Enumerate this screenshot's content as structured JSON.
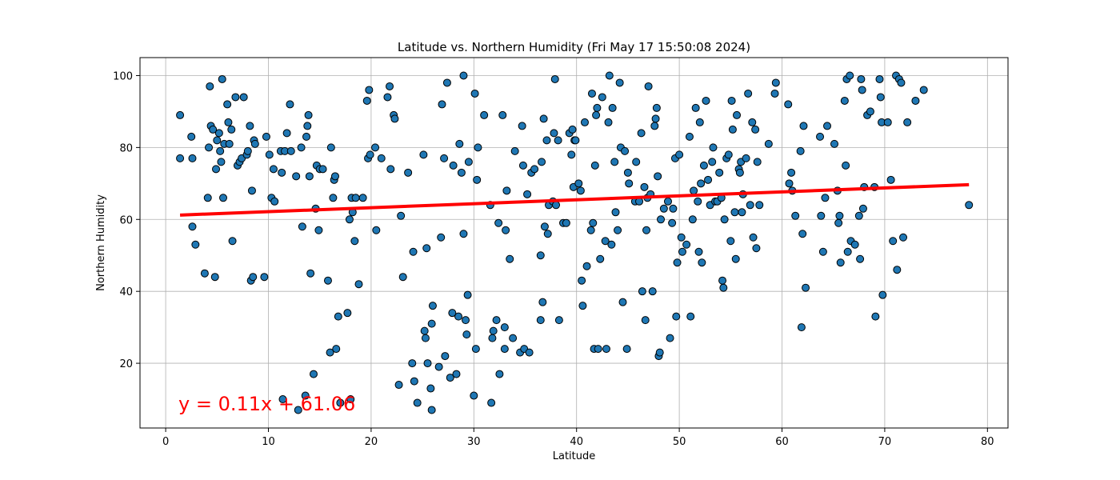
{
  "chart_data": {
    "type": "scatter",
    "title": "Latitude vs. Northern Humidity (Fri May 17 15:50:08 2024)",
    "xlabel": "Latitude",
    "ylabel": "Northern Humidity",
    "xlim": [
      -2.5,
      82
    ],
    "ylim": [
      2,
      105
    ],
    "xticks": [
      0,
      10,
      20,
      30,
      40,
      50,
      60,
      70,
      80
    ],
    "yticks": [
      20,
      40,
      60,
      80,
      100
    ],
    "grid": true,
    "marker_color": "#1f77b4",
    "marker_edge_color": "#000000",
    "regression": {
      "equation": "y = 0.11x + 61.06",
      "slope": 0.11,
      "intercept": 61.06,
      "x_range": [
        1.4,
        78.2
      ],
      "color": "#ff0000"
    },
    "points": [
      [
        1.4,
        89
      ],
      [
        1.4,
        77
      ],
      [
        2.5,
        83
      ],
      [
        2.6,
        77
      ],
      [
        2.6,
        58
      ],
      [
        2.9,
        53
      ],
      [
        3.8,
        45
      ],
      [
        4.1,
        66
      ],
      [
        4.2,
        80
      ],
      [
        4.3,
        97
      ],
      [
        4.4,
        86
      ],
      [
        4.6,
        85
      ],
      [
        4.8,
        44
      ],
      [
        4.9,
        74
      ],
      [
        5.0,
        82
      ],
      [
        5.2,
        84
      ],
      [
        5.3,
        79
      ],
      [
        5.4,
        76
      ],
      [
        5.5,
        99
      ],
      [
        5.6,
        66
      ],
      [
        5.7,
        81
      ],
      [
        6.0,
        92
      ],
      [
        6.1,
        87
      ],
      [
        6.2,
        81
      ],
      [
        6.4,
        85
      ],
      [
        6.5,
        54
      ],
      [
        6.8,
        94
      ],
      [
        7.0,
        75
      ],
      [
        7.2,
        76
      ],
      [
        7.4,
        77
      ],
      [
        7.6,
        94
      ],
      [
        7.9,
        78
      ],
      [
        8.0,
        79
      ],
      [
        8.2,
        86
      ],
      [
        8.3,
        43
      ],
      [
        8.4,
        68
      ],
      [
        8.5,
        44
      ],
      [
        8.6,
        82
      ],
      [
        8.7,
        81
      ],
      [
        9.6,
        44
      ],
      [
        9.8,
        83
      ],
      [
        10.1,
        78
      ],
      [
        10.3,
        66
      ],
      [
        10.5,
        74
      ],
      [
        10.6,
        65
      ],
      [
        11.2,
        79
      ],
      [
        11.3,
        73
      ],
      [
        11.4,
        10
      ],
      [
        11.6,
        79
      ],
      [
        11.8,
        84
      ],
      [
        12.1,
        92
      ],
      [
        12.2,
        79
      ],
      [
        12.7,
        72
      ],
      [
        12.9,
        7
      ],
      [
        13.2,
        80
      ],
      [
        13.3,
        58
      ],
      [
        13.6,
        11
      ],
      [
        13.7,
        83
      ],
      [
        13.8,
        86
      ],
      [
        13.9,
        89
      ],
      [
        14.0,
        72
      ],
      [
        14.1,
        45
      ],
      [
        14.4,
        17
      ],
      [
        14.6,
        63
      ],
      [
        14.7,
        75
      ],
      [
        14.9,
        57
      ],
      [
        15.0,
        74
      ],
      [
        15.3,
        74
      ],
      [
        15.8,
        43
      ],
      [
        16.0,
        23
      ],
      [
        16.1,
        80
      ],
      [
        16.3,
        66
      ],
      [
        16.4,
        71
      ],
      [
        16.5,
        72
      ],
      [
        16.6,
        24
      ],
      [
        16.8,
        33
      ],
      [
        17.0,
        9
      ],
      [
        17.7,
        34
      ],
      [
        17.9,
        60
      ],
      [
        18.0,
        10
      ],
      [
        18.1,
        66
      ],
      [
        18.2,
        62
      ],
      [
        18.4,
        54
      ],
      [
        18.5,
        66
      ],
      [
        18.8,
        42
      ],
      [
        19.2,
        66
      ],
      [
        19.6,
        93
      ],
      [
        19.7,
        77
      ],
      [
        19.8,
        96
      ],
      [
        19.9,
        78
      ],
      [
        20.4,
        80
      ],
      [
        20.5,
        57
      ],
      [
        21.0,
        77
      ],
      [
        21.6,
        94
      ],
      [
        21.8,
        97
      ],
      [
        21.9,
        74
      ],
      [
        22.2,
        89
      ],
      [
        22.3,
        88
      ],
      [
        22.7,
        14
      ],
      [
        22.9,
        61
      ],
      [
        23.1,
        44
      ],
      [
        23.6,
        73
      ],
      [
        24.0,
        20
      ],
      [
        24.1,
        51
      ],
      [
        24.2,
        15
      ],
      [
        24.5,
        9
      ],
      [
        25.1,
        78
      ],
      [
        25.2,
        29
      ],
      [
        25.3,
        27
      ],
      [
        25.4,
        52
      ],
      [
        25.5,
        20
      ],
      [
        25.8,
        13
      ],
      [
        25.9,
        7
      ],
      [
        25.9,
        31
      ],
      [
        26.0,
        36
      ],
      [
        26.6,
        19
      ],
      [
        26.8,
        55
      ],
      [
        26.9,
        92
      ],
      [
        27.1,
        77
      ],
      [
        27.2,
        22
      ],
      [
        27.4,
        98
      ],
      [
        27.7,
        16
      ],
      [
        27.9,
        34
      ],
      [
        28.0,
        75
      ],
      [
        28.3,
        17
      ],
      [
        28.5,
        33
      ],
      [
        28.6,
        81
      ],
      [
        28.8,
        73
      ],
      [
        29.0,
        56
      ],
      [
        29.0,
        100
      ],
      [
        29.2,
        32
      ],
      [
        29.3,
        28
      ],
      [
        29.4,
        39
      ],
      [
        29.5,
        76
      ],
      [
        30.0,
        11
      ],
      [
        30.1,
        95
      ],
      [
        30.2,
        24
      ],
      [
        30.3,
        71
      ],
      [
        30.4,
        80
      ],
      [
        31.0,
        89
      ],
      [
        31.6,
        64
      ],
      [
        31.7,
        9
      ],
      [
        31.8,
        27
      ],
      [
        31.9,
        29
      ],
      [
        32.2,
        32
      ],
      [
        32.4,
        59
      ],
      [
        32.5,
        17
      ],
      [
        32.8,
        89
      ],
      [
        33.0,
        30
      ],
      [
        33.0,
        24
      ],
      [
        33.1,
        57
      ],
      [
        33.2,
        68
      ],
      [
        33.5,
        49
      ],
      [
        33.8,
        27
      ],
      [
        34.0,
        79
      ],
      [
        34.5,
        23
      ],
      [
        34.7,
        86
      ],
      [
        34.8,
        75
      ],
      [
        34.9,
        24
      ],
      [
        35.2,
        67
      ],
      [
        35.4,
        23
      ],
      [
        35.6,
        73
      ],
      [
        35.9,
        74
      ],
      [
        36.5,
        32
      ],
      [
        36.5,
        50
      ],
      [
        36.6,
        76
      ],
      [
        36.7,
        37
      ],
      [
        36.8,
        88
      ],
      [
        36.9,
        58
      ],
      [
        37.1,
        82
      ],
      [
        37.2,
        56
      ],
      [
        37.3,
        64
      ],
      [
        37.7,
        65
      ],
      [
        37.8,
        84
      ],
      [
        37.9,
        99
      ],
      [
        38.0,
        64
      ],
      [
        38.2,
        82
      ],
      [
        38.3,
        32
      ],
      [
        38.7,
        59
      ],
      [
        39.0,
        59
      ],
      [
        39.3,
        84
      ],
      [
        39.5,
        78
      ],
      [
        39.6,
        85
      ],
      [
        39.7,
        69
      ],
      [
        39.8,
        82
      ],
      [
        39.9,
        82
      ],
      [
        40.2,
        70
      ],
      [
        40.4,
        68
      ],
      [
        40.5,
        43
      ],
      [
        40.6,
        36
      ],
      [
        40.8,
        87
      ],
      [
        41.0,
        47
      ],
      [
        41.4,
        57
      ],
      [
        41.5,
        95
      ],
      [
        41.6,
        59
      ],
      [
        41.7,
        24
      ],
      [
        41.8,
        75
      ],
      [
        41.9,
        89
      ],
      [
        42.0,
        91
      ],
      [
        42.1,
        24
      ],
      [
        42.3,
        49
      ],
      [
        42.5,
        94
      ],
      [
        42.8,
        54
      ],
      [
        42.9,
        24
      ],
      [
        43.1,
        87
      ],
      [
        43.2,
        100
      ],
      [
        43.4,
        53
      ],
      [
        43.5,
        91
      ],
      [
        43.7,
        76
      ],
      [
        43.8,
        62
      ],
      [
        44.0,
        57
      ],
      [
        44.2,
        98
      ],
      [
        44.3,
        80
      ],
      [
        44.5,
        37
      ],
      [
        44.7,
        79
      ],
      [
        44.9,
        24
      ],
      [
        45.0,
        73
      ],
      [
        45.1,
        70
      ],
      [
        45.7,
        65
      ],
      [
        45.8,
        76
      ],
      [
        46.1,
        65
      ],
      [
        46.3,
        84
      ],
      [
        46.4,
        40
      ],
      [
        46.6,
        69
      ],
      [
        46.7,
        32
      ],
      [
        46.8,
        57
      ],
      [
        46.9,
        66
      ],
      [
        47.0,
        97
      ],
      [
        47.2,
        67
      ],
      [
        47.4,
        40
      ],
      [
        47.6,
        86
      ],
      [
        47.7,
        88
      ],
      [
        47.8,
        91
      ],
      [
        47.9,
        72
      ],
      [
        48.0,
        22
      ],
      [
        48.1,
        23
      ],
      [
        48.2,
        60
      ],
      [
        48.5,
        63
      ],
      [
        48.9,
        65
      ],
      [
        49.1,
        27
      ],
      [
        49.3,
        59
      ],
      [
        49.4,
        63
      ],
      [
        49.6,
        77
      ],
      [
        49.7,
        33
      ],
      [
        49.8,
        48
      ],
      [
        50.0,
        78
      ],
      [
        50.2,
        55
      ],
      [
        50.3,
        51
      ],
      [
        50.7,
        53
      ],
      [
        51.0,
        83
      ],
      [
        51.1,
        33
      ],
      [
        51.3,
        60
      ],
      [
        51.4,
        68
      ],
      [
        51.6,
        91
      ],
      [
        51.8,
        65
      ],
      [
        51.9,
        51
      ],
      [
        52.0,
        87
      ],
      [
        52.1,
        70
      ],
      [
        52.2,
        48
      ],
      [
        52.4,
        75
      ],
      [
        52.6,
        93
      ],
      [
        52.8,
        71
      ],
      [
        53.0,
        64
      ],
      [
        53.2,
        76
      ],
      [
        53.3,
        80
      ],
      [
        53.5,
        65
      ],
      [
        53.7,
        65
      ],
      [
        53.9,
        73
      ],
      [
        54.1,
        66
      ],
      [
        54.2,
        43
      ],
      [
        54.3,
        41
      ],
      [
        54.4,
        60
      ],
      [
        54.6,
        77
      ],
      [
        54.8,
        78
      ],
      [
        55.0,
        54
      ],
      [
        55.1,
        93
      ],
      [
        55.2,
        85
      ],
      [
        55.4,
        62
      ],
      [
        55.5,
        49
      ],
      [
        55.6,
        89
      ],
      [
        55.8,
        74
      ],
      [
        55.9,
        73
      ],
      [
        56.0,
        76
      ],
      [
        56.1,
        62
      ],
      [
        56.2,
        67
      ],
      [
        56.5,
        77
      ],
      [
        56.7,
        95
      ],
      [
        56.9,
        64
      ],
      [
        57.1,
        87
      ],
      [
        57.2,
        55
      ],
      [
        57.4,
        85
      ],
      [
        57.5,
        52
      ],
      [
        57.6,
        76
      ],
      [
        57.8,
        64
      ],
      [
        58.7,
        81
      ],
      [
        59.3,
        95
      ],
      [
        59.4,
        98
      ],
      [
        60.6,
        92
      ],
      [
        60.7,
        70
      ],
      [
        60.9,
        73
      ],
      [
        61.0,
        68
      ],
      [
        61.3,
        61
      ],
      [
        61.8,
        79
      ],
      [
        61.9,
        30
      ],
      [
        62.0,
        56
      ],
      [
        62.1,
        86
      ],
      [
        62.3,
        41
      ],
      [
        63.7,
        83
      ],
      [
        63.8,
        61
      ],
      [
        64.0,
        51
      ],
      [
        64.2,
        66
      ],
      [
        64.4,
        86
      ],
      [
        65.1,
        81
      ],
      [
        65.4,
        68
      ],
      [
        65.5,
        59
      ],
      [
        65.6,
        61
      ],
      [
        65.7,
        48
      ],
      [
        66.1,
        93
      ],
      [
        66.2,
        75
      ],
      [
        66.3,
        99
      ],
      [
        66.4,
        51
      ],
      [
        66.6,
        100
      ],
      [
        66.7,
        54
      ],
      [
        67.1,
        53
      ],
      [
        67.5,
        61
      ],
      [
        67.6,
        49
      ],
      [
        67.7,
        99
      ],
      [
        67.8,
        96
      ],
      [
        67.9,
        63
      ],
      [
        68.0,
        69
      ],
      [
        68.3,
        89
      ],
      [
        68.6,
        90
      ],
      [
        69.0,
        69
      ],
      [
        69.1,
        33
      ],
      [
        69.5,
        99
      ],
      [
        69.6,
        94
      ],
      [
        69.7,
        87
      ],
      [
        69.8,
        39
      ],
      [
        70.3,
        87
      ],
      [
        70.6,
        71
      ],
      [
        70.8,
        54
      ],
      [
        71.1,
        100
      ],
      [
        71.2,
        46
      ],
      [
        71.4,
        99
      ],
      [
        71.6,
        98
      ],
      [
        71.8,
        55
      ],
      [
        72.2,
        87
      ],
      [
        73.0,
        93
      ],
      [
        73.8,
        96
      ],
      [
        78.2,
        64
      ]
    ]
  }
}
